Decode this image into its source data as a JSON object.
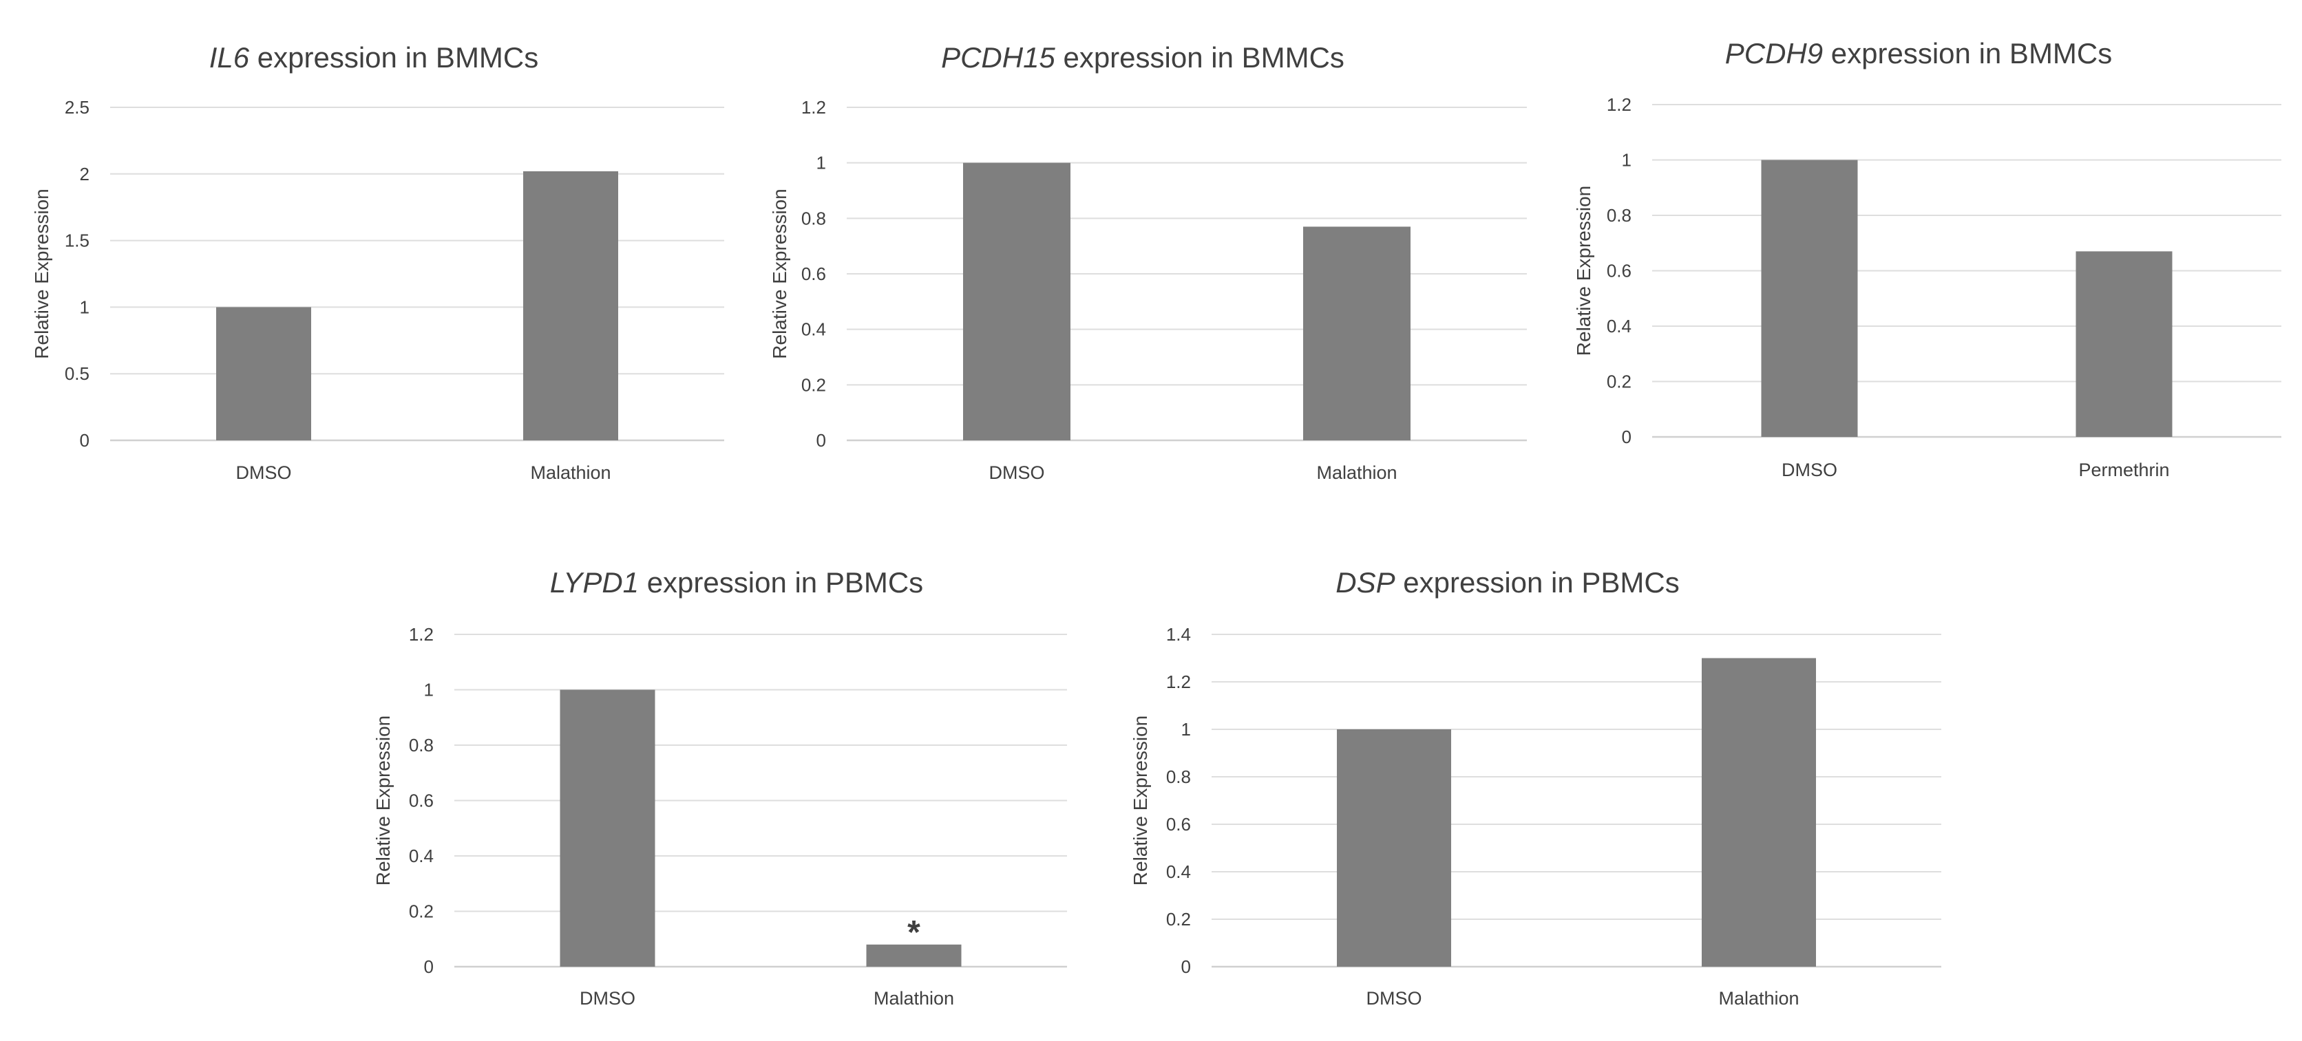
{
  "chart_data": [
    {
      "type": "bar",
      "title_gene": "IL6",
      "title_rest": " expression in BMMCs",
      "xlabel": "",
      "ylabel": "Relative Expression",
      "categories": [
        "DMSO",
        "Malathion"
      ],
      "values": [
        1.0,
        2.02
      ],
      "ylim": [
        0,
        2.5
      ],
      "yticks": [
        "0",
        "0.5",
        "1",
        "1.5",
        "2",
        "2.5"
      ],
      "grid": true,
      "bar_color": "#7f7f7f",
      "annotations": []
    },
    {
      "type": "bar",
      "title_gene": "PCDH15",
      "title_rest": " expression in BMMCs",
      "xlabel": "",
      "ylabel": "Relative Expression",
      "categories": [
        "DMSO",
        "Malathion"
      ],
      "values": [
        1.0,
        0.77
      ],
      "ylim": [
        0,
        1.2
      ],
      "yticks": [
        "0",
        "0.2",
        "0.4",
        "0.6",
        "0.8",
        "1",
        "1.2"
      ],
      "grid": true,
      "bar_color": "#7f7f7f",
      "annotations": []
    },
    {
      "type": "bar",
      "title_gene": "PCDH9",
      "title_rest": " expression in BMMCs",
      "xlabel": "",
      "ylabel": "Relative Expression",
      "categories": [
        "DMSO",
        "Permethrin"
      ],
      "values": [
        1.0,
        0.67
      ],
      "ylim": [
        0,
        1.2
      ],
      "yticks": [
        "0",
        "0.2",
        "0.4",
        "0.6",
        "0.8",
        "1",
        "1.2"
      ],
      "grid": true,
      "bar_color": "#7f7f7f",
      "annotations": []
    },
    {
      "type": "bar",
      "title_gene": "LYPD1",
      "title_rest": " expression in PBMCs",
      "xlabel": "",
      "ylabel": "Relative Expression",
      "categories": [
        "DMSO",
        "Malathion"
      ],
      "values": [
        1.0,
        0.08
      ],
      "ylim": [
        0,
        1.2
      ],
      "yticks": [
        "0",
        "0.2",
        "0.4",
        "0.6",
        "0.8",
        "1",
        "1.2"
      ],
      "grid": true,
      "bar_color": "#7f7f7f",
      "annotations": [
        {
          "category": "Malathion",
          "text": "*"
        }
      ]
    },
    {
      "type": "bar",
      "title_gene": "DSP",
      "title_rest": " expression in PBMCs",
      "xlabel": "",
      "ylabel": "Relative Expression",
      "categories": [
        "DMSO",
        "Malathion"
      ],
      "values": [
        1.0,
        1.3
      ],
      "ylim": [
        0,
        1.4
      ],
      "yticks": [
        "0",
        "0.2",
        "0.4",
        "0.6",
        "0.8",
        "1",
        "1.2",
        "1.4"
      ],
      "grid": true,
      "bar_color": "#7f7f7f",
      "annotations": []
    }
  ]
}
